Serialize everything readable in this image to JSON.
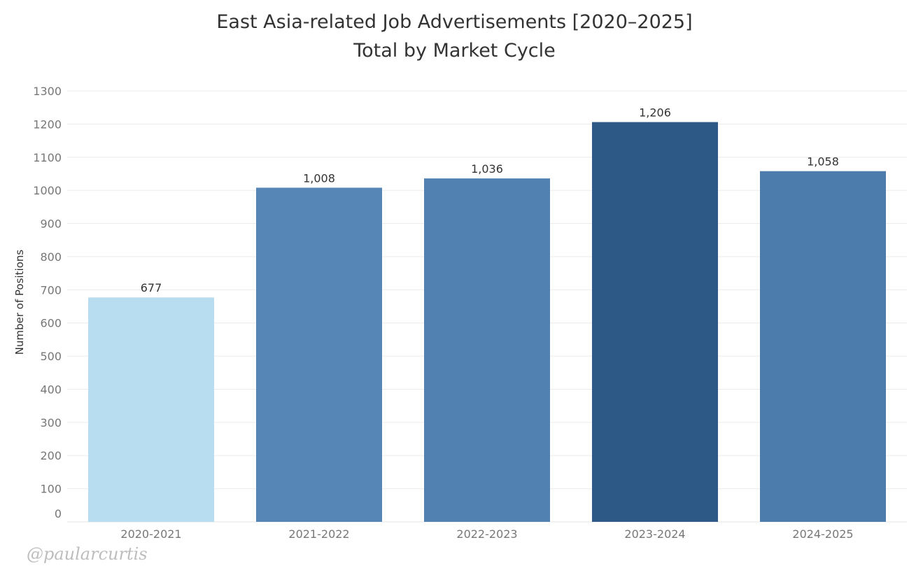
{
  "chart_data": {
    "type": "bar",
    "title": "East Asia-related Job Advertisements [2020–2025]",
    "subtitle": "Total by Market Cycle",
    "xlabel": "",
    "ylabel": "Number of Positions",
    "ylim": [
      0,
      1300
    ],
    "yticks": [
      0,
      100,
      200,
      300,
      400,
      500,
      600,
      700,
      800,
      900,
      1000,
      1100,
      1200,
      1300
    ],
    "categories": [
      "2020-2021",
      "2021-2022",
      "2022-2023",
      "2023-2024",
      "2024-2025"
    ],
    "values": [
      677,
      1008,
      1036,
      1206,
      1058
    ],
    "value_labels": [
      "677",
      "1,008",
      "1,036",
      "1,206",
      "1,058"
    ],
    "bar_colors": [
      "#b9ddf0",
      "#5586b5",
      "#5081b0",
      "#2c5985",
      "#4b7cab"
    ],
    "grid": true,
    "legend": "none"
  },
  "watermark": "@paularcurtis"
}
